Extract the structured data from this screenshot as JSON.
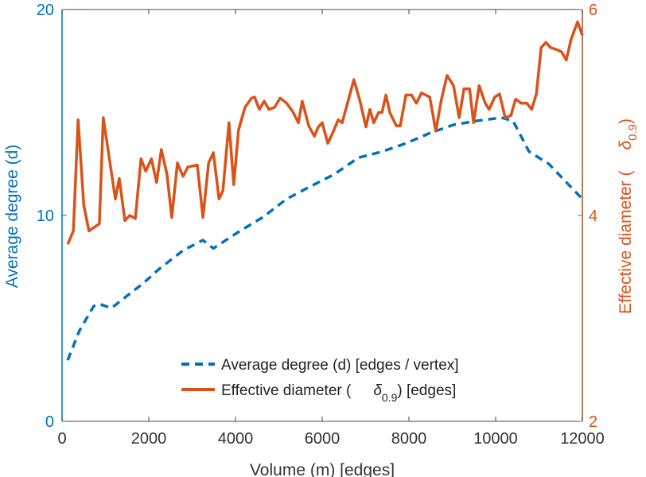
{
  "chart_data": {
    "type": "line",
    "title": "",
    "xlabel": "Volume (m) [edges]",
    "ylabel_left": "Average degree (d)",
    "ylabel_right": {
      "prefix": "Effective diameter (",
      "symbol": "δ",
      "sub": "0.9",
      "suffix": ")"
    },
    "xlim": [
      0,
      12000
    ],
    "ylim_left": [
      0,
      20
    ],
    "ylim_right": [
      2,
      6
    ],
    "xticks": [
      "0",
      "2000",
      "4000",
      "6000",
      "8000",
      "10000",
      "12000"
    ],
    "yticks_left": [
      "0",
      "10",
      "20"
    ],
    "yticks_right": [
      "2",
      "4",
      "6"
    ],
    "grid": false,
    "legend_position": "bottom-center",
    "colors": {
      "left": "#0072BD",
      "right": "#D95319"
    },
    "series": [
      {
        "name": "Average degree (d) [edges / vertex]",
        "axis": "left",
        "style": "dashed",
        "x": [
          130,
          400,
          730,
          860,
          1140,
          1500,
          1870,
          2240,
          2790,
          3250,
          3490,
          4070,
          4620,
          5180,
          5720,
          6280,
          6830,
          7380,
          7930,
          8480,
          9030,
          9580,
          10130,
          10400,
          10770,
          11230,
          12000
        ],
        "y": [
          2.97,
          4.4,
          5.6,
          5.7,
          5.5,
          6.1,
          6.7,
          7.4,
          8.3,
          8.8,
          8.4,
          9.2,
          9.9,
          10.8,
          11.4,
          12.0,
          12.8,
          13.1,
          13.5,
          14.0,
          14.4,
          14.6,
          14.75,
          14.6,
          13.1,
          12.5,
          10.8
        ]
      },
      {
        "name_prefix": "Effective diameter (",
        "name_symbol": "δ",
        "name_sub": "0.9",
        "name_suffix": ") [edges]",
        "axis": "right",
        "style": "solid",
        "x": [
          130,
          260,
          370,
          500,
          620,
          860,
          950,
          1230,
          1320,
          1450,
          1560,
          1690,
          1820,
          1930,
          2060,
          2180,
          2290,
          2420,
          2530,
          2660,
          2790,
          2900,
          3120,
          3250,
          3380,
          3490,
          3620,
          3710,
          3850,
          3960,
          4070,
          4220,
          4370,
          4440,
          4550,
          4660,
          4770,
          4900,
          5030,
          5180,
          5320,
          5450,
          5540,
          5690,
          5820,
          5910,
          6000,
          6130,
          6240,
          6370,
          6460,
          6610,
          6730,
          6860,
          7010,
          7100,
          7190,
          7300,
          7380,
          7470,
          7560,
          7710,
          7800,
          7930,
          8060,
          8170,
          8290,
          8480,
          8620,
          8750,
          8880,
          9030,
          9160,
          9270,
          9400,
          9490,
          9620,
          9760,
          9850,
          9980,
          10090,
          10220,
          10350,
          10460,
          10590,
          10720,
          10830,
          10940,
          11050,
          11160,
          11270,
          11410,
          11520,
          11630,
          11740,
          11890,
          12000
        ],
        "y": [
          3.72,
          3.85,
          4.93,
          4.1,
          3.85,
          3.92,
          4.95,
          4.16,
          4.36,
          3.95,
          4.0,
          3.97,
          4.55,
          4.43,
          4.55,
          4.32,
          4.64,
          4.4,
          3.98,
          4.51,
          4.38,
          4.47,
          4.49,
          3.98,
          4.51,
          4.61,
          4.16,
          4.24,
          4.9,
          4.3,
          4.83,
          5.05,
          5.14,
          5.15,
          5.03,
          5.11,
          5.03,
          5.05,
          5.14,
          5.09,
          5.01,
          4.9,
          5.11,
          4.87,
          4.77,
          4.86,
          4.9,
          4.7,
          4.8,
          4.93,
          4.9,
          5.13,
          5.32,
          5.13,
          4.86,
          5.03,
          4.9,
          5.0,
          5.0,
          5.17,
          5.0,
          4.87,
          4.87,
          5.17,
          5.17,
          5.09,
          5.19,
          5.15,
          4.82,
          5.13,
          5.36,
          5.26,
          4.95,
          5.23,
          5.23,
          4.9,
          5.26,
          5.09,
          5.03,
          5.15,
          5.18,
          4.95,
          4.97,
          5.13,
          5.09,
          5.09,
          5.03,
          5.18,
          5.63,
          5.68,
          5.63,
          5.61,
          5.59,
          5.51,
          5.71,
          5.88,
          5.75
        ]
      }
    ]
  }
}
